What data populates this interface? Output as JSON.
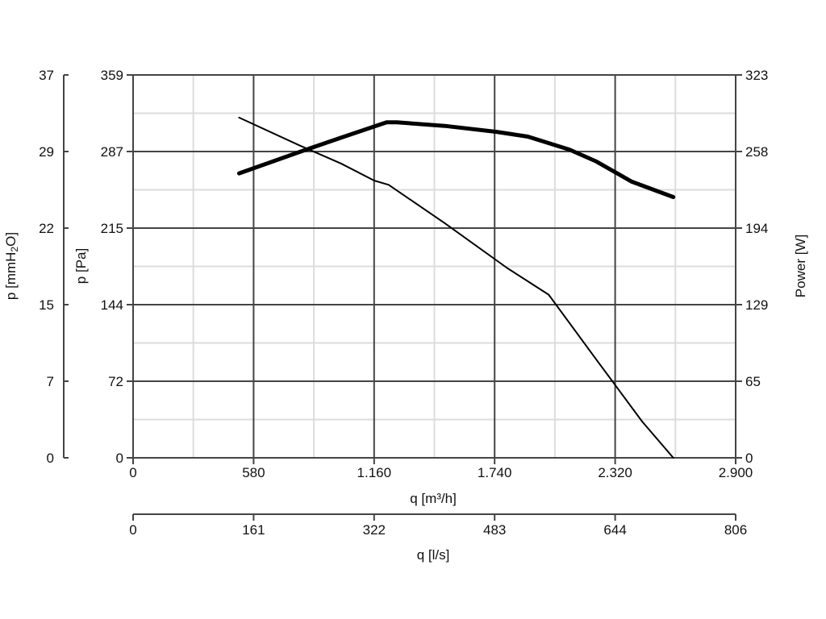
{
  "chart_data": {
    "type": "line",
    "title": "",
    "x": {
      "label": "q [m³/h]",
      "ticks": [
        "0",
        "580",
        "1.160",
        "1.740",
        "2.320",
        "2.900"
      ],
      "range": [
        0,
        2900
      ],
      "minor_gridlines": true
    },
    "x2": {
      "label": "q [l/s]",
      "ticks": [
        "0",
        "161",
        "322",
        "483",
        "644",
        "806"
      ],
      "range": [
        0,
        806
      ]
    },
    "y_left_outer": {
      "label_main": "p [mmH",
      "label_sub": "2",
      "label_end": "O]",
      "ticks": [
        "0",
        "7",
        "15",
        "22",
        "29",
        "37"
      ],
      "range": [
        0,
        37
      ]
    },
    "y_left": {
      "label": "p [Pa]",
      "ticks": [
        "0",
        "72",
        "144",
        "215",
        "287",
        "359"
      ],
      "range": [
        0,
        359
      ]
    },
    "y_right": {
      "label": "Power [W]",
      "ticks": [
        "0",
        "65",
        "129",
        "194",
        "258",
        "323"
      ],
      "range": [
        0,
        323
      ]
    },
    "grid": true,
    "series": [
      {
        "axis": "y_left",
        "style": "thin",
        "x": [
          510,
          800,
          1000,
          1160,
          1230,
          1500,
          1800,
          2000,
          2230,
          2450,
          2600
        ],
        "y": [
          319,
          293,
          276,
          260,
          256,
          220,
          178,
          153,
          92,
          34,
          0
        ]
      },
      {
        "axis": "y_right",
        "style": "thick",
        "x": [
          510,
          800,
          1000,
          1220,
          1270,
          1500,
          1750,
          1900,
          2100,
          2230,
          2400,
          2600
        ],
        "y": [
          240,
          258,
          270,
          283,
          283,
          280,
          275,
          271,
          260,
          250,
          233,
          220
        ]
      }
    ]
  }
}
